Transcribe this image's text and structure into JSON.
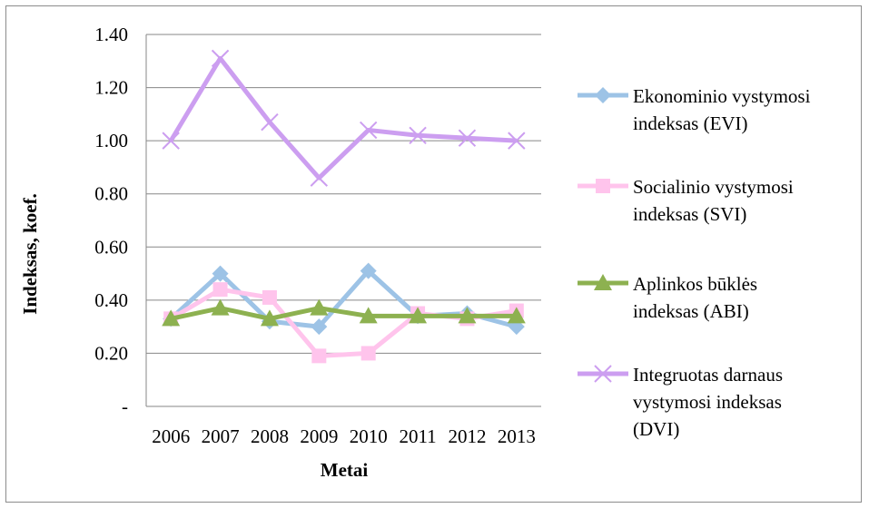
{
  "chart_data": {
    "type": "line",
    "xlabel": "Metai",
    "ylabel": "Indeksas, koef.",
    "categories": [
      "2006",
      "2007",
      "2008",
      "2009",
      "2010",
      "2011",
      "2012",
      "2013"
    ],
    "ylim": [
      0,
      1.4
    ],
    "yticks": [
      {
        "value": 0,
        "label": "-"
      },
      {
        "value": 0.2,
        "label": "0.20"
      },
      {
        "value": 0.4,
        "label": "0.40"
      },
      {
        "value": 0.6,
        "label": "0.60"
      },
      {
        "value": 0.8,
        "label": "0.80"
      },
      {
        "value": 1.0,
        "label": "1.00"
      },
      {
        "value": 1.2,
        "label": "1.20"
      },
      {
        "value": 1.4,
        "label": "1.40"
      }
    ],
    "grid": true,
    "legend_position": "right",
    "series": [
      {
        "name": "Ekonominio vystymosi indeksas (EVI)",
        "legend_lines": [
          "Ekonominio vystymosi",
          "indeksas (EVI)"
        ],
        "color": "#9dc3e6",
        "marker": "diamond",
        "values": [
          0.33,
          0.5,
          0.32,
          0.3,
          0.51,
          0.34,
          0.35,
          0.3
        ]
      },
      {
        "name": "Socialinio vystymosi indeksas (SVI)",
        "legend_lines": [
          "Socialinio vystymosi",
          "indeksas (SVI)"
        ],
        "color": "#ffc4ec",
        "marker": "square",
        "values": [
          0.33,
          0.44,
          0.41,
          0.19,
          0.2,
          0.35,
          0.33,
          0.36
        ]
      },
      {
        "name": "Aplinkos būklės indeksas (ABI)",
        "legend_lines": [
          "Aplinkos būklės",
          "indeksas (ABI)"
        ],
        "color": "#8db150",
        "marker": "triangle",
        "values": [
          0.33,
          0.37,
          0.33,
          0.37,
          0.34,
          0.34,
          0.34,
          0.34
        ]
      },
      {
        "name": "Integruotas darnaus vystymosi indeksas (DVI)",
        "legend_lines": [
          "Integruotas darnaus",
          "vystymosi indeksas",
          "(DVI)"
        ],
        "color": "#cc9ef0",
        "marker": "x",
        "values": [
          1.0,
          1.31,
          1.07,
          0.86,
          1.04,
          1.02,
          1.01,
          1.0
        ]
      }
    ]
  }
}
